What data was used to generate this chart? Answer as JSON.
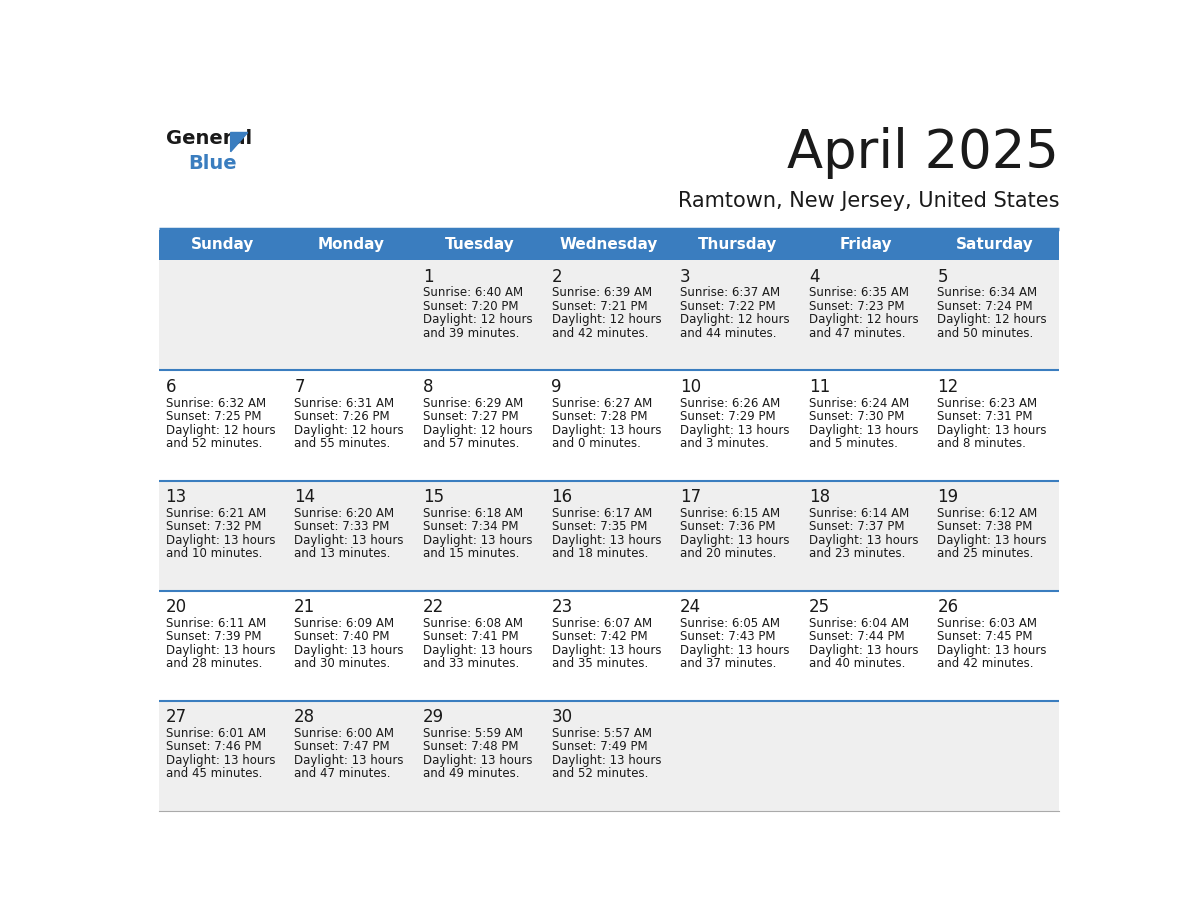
{
  "title": "April 2025",
  "subtitle": "Ramtown, New Jersey, United States",
  "header_bg_color": "#3a7dbf",
  "header_text_color": "#ffffff",
  "row_bg_light": "#efefef",
  "row_bg_white": "#ffffff",
  "separator_color": "#3a7dbf",
  "text_color": "#1a1a1a",
  "day_headers": [
    "Sunday",
    "Monday",
    "Tuesday",
    "Wednesday",
    "Thursday",
    "Friday",
    "Saturday"
  ],
  "days": [
    {
      "col": 0,
      "row": 0,
      "num": "",
      "sunrise": "",
      "sunset": "",
      "daylight": ""
    },
    {
      "col": 1,
      "row": 0,
      "num": "",
      "sunrise": "",
      "sunset": "",
      "daylight": ""
    },
    {
      "col": 2,
      "row": 0,
      "num": "1",
      "sunrise": "6:40 AM",
      "sunset": "7:20 PM",
      "daylight": "12 hours\nand 39 minutes."
    },
    {
      "col": 3,
      "row": 0,
      "num": "2",
      "sunrise": "6:39 AM",
      "sunset": "7:21 PM",
      "daylight": "12 hours\nand 42 minutes."
    },
    {
      "col": 4,
      "row": 0,
      "num": "3",
      "sunrise": "6:37 AM",
      "sunset": "7:22 PM",
      "daylight": "12 hours\nand 44 minutes."
    },
    {
      "col": 5,
      "row": 0,
      "num": "4",
      "sunrise": "6:35 AM",
      "sunset": "7:23 PM",
      "daylight": "12 hours\nand 47 minutes."
    },
    {
      "col": 6,
      "row": 0,
      "num": "5",
      "sunrise": "6:34 AM",
      "sunset": "7:24 PM",
      "daylight": "12 hours\nand 50 minutes."
    },
    {
      "col": 0,
      "row": 1,
      "num": "6",
      "sunrise": "6:32 AM",
      "sunset": "7:25 PM",
      "daylight": "12 hours\nand 52 minutes."
    },
    {
      "col": 1,
      "row": 1,
      "num": "7",
      "sunrise": "6:31 AM",
      "sunset": "7:26 PM",
      "daylight": "12 hours\nand 55 minutes."
    },
    {
      "col": 2,
      "row": 1,
      "num": "8",
      "sunrise": "6:29 AM",
      "sunset": "7:27 PM",
      "daylight": "12 hours\nand 57 minutes."
    },
    {
      "col": 3,
      "row": 1,
      "num": "9",
      "sunrise": "6:27 AM",
      "sunset": "7:28 PM",
      "daylight": "13 hours\nand 0 minutes."
    },
    {
      "col": 4,
      "row": 1,
      "num": "10",
      "sunrise": "6:26 AM",
      "sunset": "7:29 PM",
      "daylight": "13 hours\nand 3 minutes."
    },
    {
      "col": 5,
      "row": 1,
      "num": "11",
      "sunrise": "6:24 AM",
      "sunset": "7:30 PM",
      "daylight": "13 hours\nand 5 minutes."
    },
    {
      "col": 6,
      "row": 1,
      "num": "12",
      "sunrise": "6:23 AM",
      "sunset": "7:31 PM",
      "daylight": "13 hours\nand 8 minutes."
    },
    {
      "col": 0,
      "row": 2,
      "num": "13",
      "sunrise": "6:21 AM",
      "sunset": "7:32 PM",
      "daylight": "13 hours\nand 10 minutes."
    },
    {
      "col": 1,
      "row": 2,
      "num": "14",
      "sunrise": "6:20 AM",
      "sunset": "7:33 PM",
      "daylight": "13 hours\nand 13 minutes."
    },
    {
      "col": 2,
      "row": 2,
      "num": "15",
      "sunrise": "6:18 AM",
      "sunset": "7:34 PM",
      "daylight": "13 hours\nand 15 minutes."
    },
    {
      "col": 3,
      "row": 2,
      "num": "16",
      "sunrise": "6:17 AM",
      "sunset": "7:35 PM",
      "daylight": "13 hours\nand 18 minutes."
    },
    {
      "col": 4,
      "row": 2,
      "num": "17",
      "sunrise": "6:15 AM",
      "sunset": "7:36 PM",
      "daylight": "13 hours\nand 20 minutes."
    },
    {
      "col": 5,
      "row": 2,
      "num": "18",
      "sunrise": "6:14 AM",
      "sunset": "7:37 PM",
      "daylight": "13 hours\nand 23 minutes."
    },
    {
      "col": 6,
      "row": 2,
      "num": "19",
      "sunrise": "6:12 AM",
      "sunset": "7:38 PM",
      "daylight": "13 hours\nand 25 minutes."
    },
    {
      "col": 0,
      "row": 3,
      "num": "20",
      "sunrise": "6:11 AM",
      "sunset": "7:39 PM",
      "daylight": "13 hours\nand 28 minutes."
    },
    {
      "col": 1,
      "row": 3,
      "num": "21",
      "sunrise": "6:09 AM",
      "sunset": "7:40 PM",
      "daylight": "13 hours\nand 30 minutes."
    },
    {
      "col": 2,
      "row": 3,
      "num": "22",
      "sunrise": "6:08 AM",
      "sunset": "7:41 PM",
      "daylight": "13 hours\nand 33 minutes."
    },
    {
      "col": 3,
      "row": 3,
      "num": "23",
      "sunrise": "6:07 AM",
      "sunset": "7:42 PM",
      "daylight": "13 hours\nand 35 minutes."
    },
    {
      "col": 4,
      "row": 3,
      "num": "24",
      "sunrise": "6:05 AM",
      "sunset": "7:43 PM",
      "daylight": "13 hours\nand 37 minutes."
    },
    {
      "col": 5,
      "row": 3,
      "num": "25",
      "sunrise": "6:04 AM",
      "sunset": "7:44 PM",
      "daylight": "13 hours\nand 40 minutes."
    },
    {
      "col": 6,
      "row": 3,
      "num": "26",
      "sunrise": "6:03 AM",
      "sunset": "7:45 PM",
      "daylight": "13 hours\nand 42 minutes."
    },
    {
      "col": 0,
      "row": 4,
      "num": "27",
      "sunrise": "6:01 AM",
      "sunset": "7:46 PM",
      "daylight": "13 hours\nand 45 minutes."
    },
    {
      "col": 1,
      "row": 4,
      "num": "28",
      "sunrise": "6:00 AM",
      "sunset": "7:47 PM",
      "daylight": "13 hours\nand 47 minutes."
    },
    {
      "col": 2,
      "row": 4,
      "num": "29",
      "sunrise": "5:59 AM",
      "sunset": "7:48 PM",
      "daylight": "13 hours\nand 49 minutes."
    },
    {
      "col": 3,
      "row": 4,
      "num": "30",
      "sunrise": "5:57 AM",
      "sunset": "7:49 PM",
      "daylight": "13 hours\nand 52 minutes."
    },
    {
      "col": 4,
      "row": 4,
      "num": "",
      "sunrise": "",
      "sunset": "",
      "daylight": ""
    },
    {
      "col": 5,
      "row": 4,
      "num": "",
      "sunrise": "",
      "sunset": "",
      "daylight": ""
    },
    {
      "col": 6,
      "row": 4,
      "num": "",
      "sunrise": "",
      "sunset": "",
      "daylight": ""
    }
  ]
}
